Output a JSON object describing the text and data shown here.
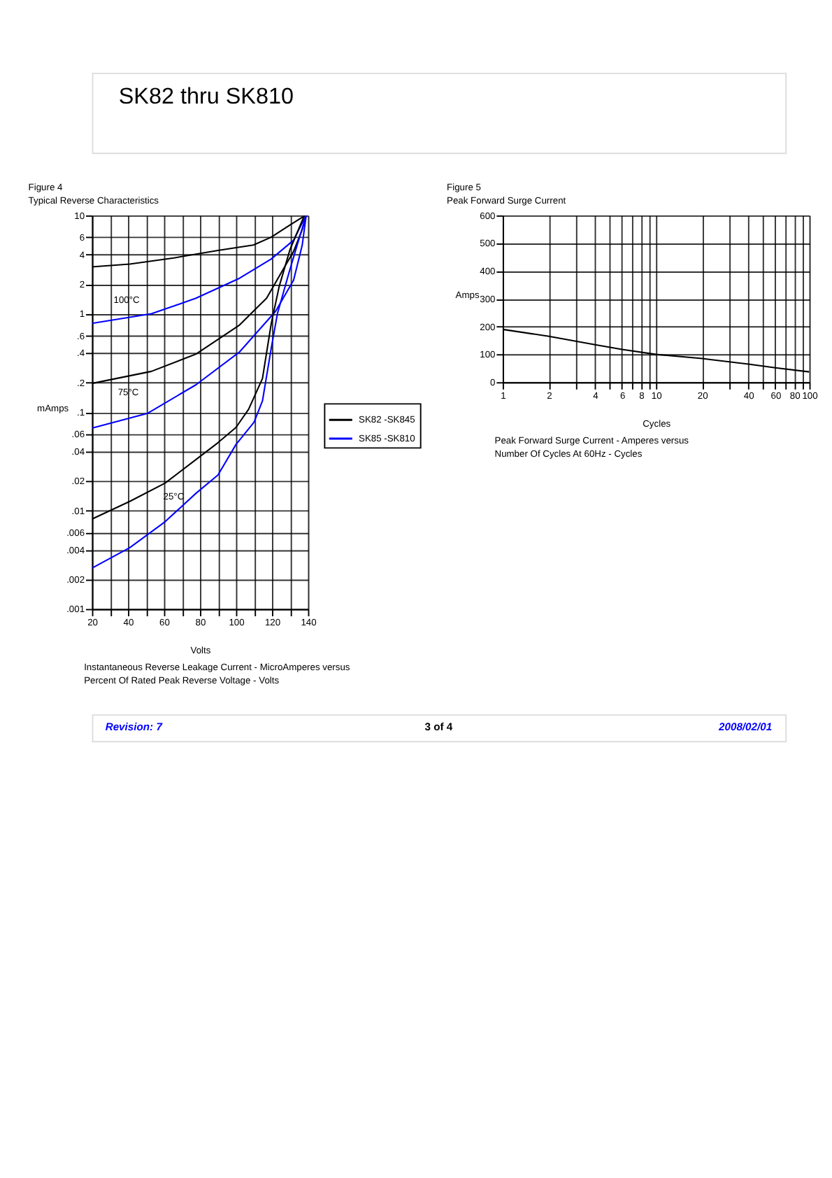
{
  "chart_data": [
    {
      "type": "line",
      "title": "Figure 4",
      "subtitle": "Typical Reverse Characteristics",
      "xlabel": "Volts",
      "ylabel": "mAmps",
      "log": "y",
      "xlim": [
        20,
        140
      ],
      "ylim": [
        0.001,
        10
      ],
      "xticks": [
        20,
        {
          "value": 30,
          "label": null
        },
        40,
        {
          "value": 50,
          "label": null
        },
        60,
        {
          "value": 70,
          "label": null
        },
        80,
        {
          "value": 90,
          "label": null
        },
        100,
        {
          "value": 110,
          "label": null
        },
        120,
        {
          "value": 130,
          "label": null
        },
        140
      ],
      "yticks": [
        10,
        6,
        4,
        2,
        1,
        {
          "value": 0.6,
          "label": ".6"
        },
        {
          "value": 0.4,
          "label": ".4"
        },
        {
          "value": 0.2,
          "label": ".2"
        },
        {
          "value": 0.1,
          "label": ".1"
        },
        {
          "value": 0.06,
          "label": ".06"
        },
        {
          "value": 0.04,
          "label": ".04"
        },
        {
          "value": 0.02,
          "label": ".02"
        },
        {
          "value": 0.01,
          "label": ".01"
        },
        {
          "value": 0.006,
          "label": ".006"
        },
        {
          "value": 0.004,
          "label": ".004"
        },
        {
          "value": 0.002,
          "label": ".002"
        },
        {
          "value": 0.001,
          "label": ".001"
        }
      ],
      "grid": true,
      "legend": "right",
      "line_style": "solid",
      "marker": "none",
      "series": [
        {
          "name": "SK82 -SK845",
          "color": "#000000",
          "x": [
            20,
            41,
            65.5,
            90,
            109.7,
            119.5,
            130,
            138.5
          ],
          "values": [
            3.0,
            3.2,
            3.7,
            4.4,
            5.0,
            6.0,
            8.0,
            10
          ]
        },
        {
          "name": "SK85 -SK810",
          "color": "#0000ff",
          "x": [
            20,
            53,
            77.8,
            102,
            119.5,
            132,
            136.8,
            139
          ],
          "values": [
            0.8,
            1.0,
            1.44,
            2.3,
            3.6,
            5.6,
            8.4,
            10
          ]
        },
        {
          "color": "#000000",
          "x": [
            20,
            53,
            77.8,
            102,
            117,
            127,
            132,
            136.8,
            139
          ],
          "values": [
            0.196,
            0.26,
            0.39,
            0.77,
            1.44,
            3.0,
            4.3,
            7.2,
            10
          ]
        },
        {
          "color": "#0000ff",
          "x": [
            20,
            50.7,
            77.8,
            102,
            122,
            132,
            136.8,
            139
          ],
          "values": [
            0.069,
            0.097,
            0.19,
            0.41,
            1.06,
            2.2,
            5.0,
            10
          ]
        },
        {
          "color": "#000000",
          "x": [
            20,
            41,
            60.6,
            77.8,
            90,
            100,
            107,
            114.7,
            119.6,
            124,
            130,
            138
          ],
          "values": [
            0.0082,
            0.0124,
            0.019,
            0.033,
            0.049,
            0.07,
            0.107,
            0.22,
            0.8,
            1.9,
            4.5,
            10
          ]
        },
        {
          "color": "#0000ff",
          "x": [
            20,
            41,
            60.6,
            77.8,
            90,
            100,
            110,
            114.7,
            119.6,
            123,
            129.4,
            134,
            139
          ],
          "values": [
            0.0026,
            0.0042,
            0.0077,
            0.015,
            0.023,
            0.047,
            0.079,
            0.13,
            0.45,
            1.0,
            2.6,
            5.0,
            10
          ]
        }
      ],
      "annotations": [
        "SK82 thru SK810",
        "100°C",
        "75°C",
        "25°C",
        "Instantaneous Reverse Leakage Current - MicroAmperes versus",
        "Percent Of Rated Peak Reverse Voltage - Volts",
        "Revision: 7",
        "3 of 4",
        "2008/02/01"
      ]
    },
    {
      "type": "line",
      "title": "Figure 5",
      "subtitle": "Peak Forward Surge Current",
      "xlabel": "Cycles",
      "ylabel": "Amps",
      "log": "x",
      "xlim": [
        1,
        100
      ],
      "ylim": [
        0,
        600
      ],
      "xticks": [
        1,
        2,
        {
          "value": 3,
          "label": null
        },
        4,
        {
          "value": 5,
          "label": null
        },
        6,
        {
          "value": 7,
          "label": null
        },
        8,
        {
          "value": 9,
          "label": null
        },
        10,
        20,
        {
          "value": 30,
          "label": null
        },
        40,
        {
          "value": 50,
          "label": null
        },
        60,
        {
          "value": 70,
          "label": null
        },
        80,
        {
          "value": 90,
          "label": null
        },
        100
      ],
      "yticks": [
        0,
        100,
        200,
        300,
        400,
        500,
        600
      ],
      "grid": true,
      "line_style": "solid",
      "marker": "none",
      "series": [
        {
          "color": "#000000",
          "x": [
            1,
            2,
            4,
            6,
            10,
            20,
            40,
            60,
            100
          ],
          "values": [
            190,
            165,
            135,
            118,
            100,
            85,
            65,
            52,
            37
          ]
        }
      ],
      "annotations": [
        "Peak Forward Surge Current - Amperes versus",
        "Number Of Cycles At 60Hz - Cycles"
      ]
    }
  ]
}
